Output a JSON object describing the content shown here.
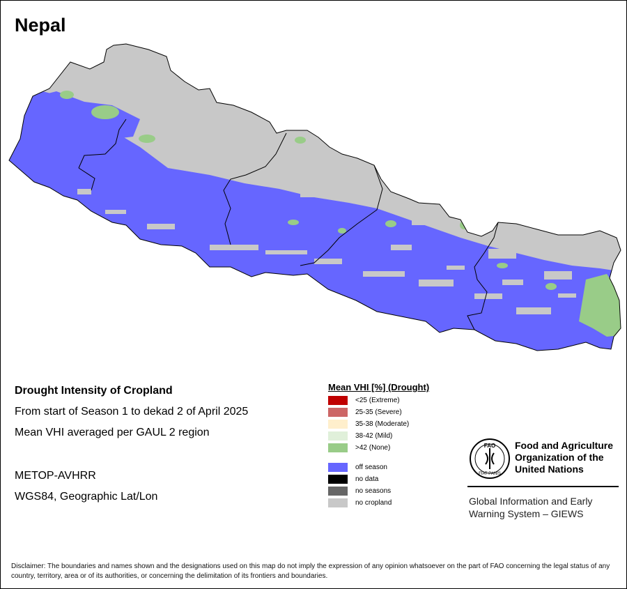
{
  "map": {
    "title": "Nepal",
    "colors": {
      "off_season": "#6666ff",
      "no_cropland": "#c8c8c8",
      "none_drought": "#99cc88",
      "border": "#000000"
    }
  },
  "info": {
    "heading": "Drought Intensity of Cropland",
    "period": "From start of Season 1 to dekad 2 of April 2025",
    "method": "Mean VHI averaged per GAUL 2 region",
    "sensor": "METOP-AVHRR",
    "projection": "WGS84, Geographic Lat/Lon"
  },
  "legend": {
    "title": "Mean VHI [%] (Drought)",
    "items": [
      {
        "label": "<25    (Extreme)",
        "color": "#c00000"
      },
      {
        "label": "25-35 (Severe)",
        "color": "#cc6666"
      },
      {
        "label": "35-38 (Moderate)",
        "color": "#ffefcc"
      },
      {
        "label": "38-42 (Mild)",
        "color": "#e0f0da"
      },
      {
        "label": ">42    (None)",
        "color": "#99cc88"
      },
      {
        "label": "off season",
        "color": "#6666ff"
      },
      {
        "label": "no data",
        "color": "#000000"
      },
      {
        "label": "no seasons",
        "color": "#666666"
      },
      {
        "label": "no cropland",
        "color": "#c8c8c8"
      }
    ]
  },
  "organization": {
    "name": "Food and Agriculture Organization of the United Nations",
    "logo_text": "FAO",
    "logo_motto": "FIAT PANIS",
    "system": "Global Information and Early Warning System – GIEWS"
  },
  "disclaimer": "Disclaimer: The boundaries and names shown and the designations used on this map do not imply the expression of any opinion whatsoever on the part of FAO concerning the legal status of any country, territory, area or of its authorities, or concerning the delimitation of its frontiers and boundaries."
}
